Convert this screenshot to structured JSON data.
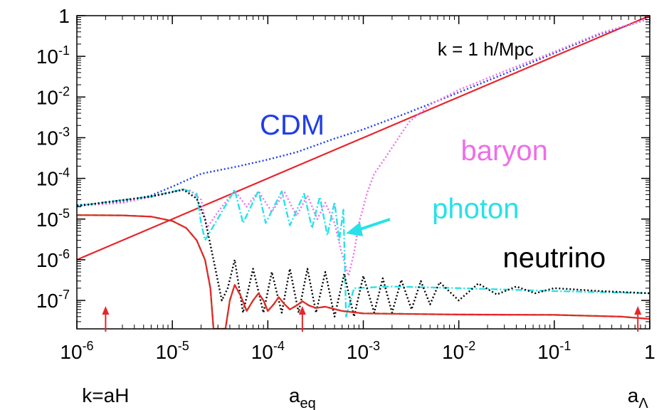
{
  "chart_data": {
    "type": "line",
    "title": "",
    "xlabel": "",
    "ylabel": "",
    "x_scale": "log",
    "y_scale": "log",
    "xlim": [
      1e-06,
      1
    ],
    "ylim": [
      2e-08,
      1
    ],
    "grid": false,
    "x_ticks": [
      {
        "value": 1e-06,
        "base": "10",
        "exp": "-6"
      },
      {
        "value": 1e-05,
        "base": "10",
        "exp": "-5"
      },
      {
        "value": 0.0001,
        "base": "10",
        "exp": "-4"
      },
      {
        "value": 0.001,
        "base": "10",
        "exp": "-3"
      },
      {
        "value": 0.01,
        "base": "10",
        "exp": "-2"
      },
      {
        "value": 0.1,
        "base": "10",
        "exp": "-1"
      },
      {
        "value": 1,
        "base": "1",
        "exp": ""
      }
    ],
    "y_ticks": [
      {
        "value": 1,
        "base": "1",
        "exp": ""
      },
      {
        "value": 0.1,
        "base": "10",
        "exp": "-1"
      },
      {
        "value": 0.01,
        "base": "10",
        "exp": "-2"
      },
      {
        "value": 0.001,
        "base": "10",
        "exp": "-3"
      },
      {
        "value": 0.0001,
        "base": "10",
        "exp": "-4"
      },
      {
        "value": 1e-05,
        "base": "10",
        "exp": "-5"
      },
      {
        "value": 1e-06,
        "base": "10",
        "exp": "-6"
      },
      {
        "value": 1e-07,
        "base": "10",
        "exp": "-7"
      }
    ],
    "annotations": {
      "k_label": "k = 1 h/Mpc",
      "cdm": {
        "text": "CDM",
        "color": "#1f3ee8",
        "x": 0.00018,
        "y": 0.0012
      },
      "baryon": {
        "text": "baryon",
        "color": "#ee6ee8",
        "x": 0.03,
        "y": 0.00028
      },
      "photon": {
        "text": "photon",
        "color": "#28e1e8",
        "x": 0.015,
        "y": 1.05e-05
      },
      "neutrino": {
        "text": "neutrino",
        "color": "#000000",
        "x": 0.1,
        "y": 6.5e-07
      }
    },
    "markers": [
      {
        "name": "k-aH",
        "x": 2e-06,
        "label": "k=aH",
        "label_sub": ""
      },
      {
        "name": "a-eq",
        "x": 0.00023,
        "label": "a",
        "label_sub": "eq"
      },
      {
        "name": "a-lambda",
        "x": 0.75,
        "label": "a",
        "label_sub": "Λ"
      }
    ],
    "series": [
      {
        "style": "solid",
        "color": "#e8252a",
        "points": [
          [
            1e-06,
            1e-06
          ],
          [
            1,
            1
          ]
        ]
      },
      {
        "style": "dotted",
        "color": "#1f3ee8",
        "points": [
          [
            1e-06,
            2.2e-05
          ],
          [
            3e-06,
            2.6e-05
          ],
          [
            6e-06,
            3.8e-05
          ],
          [
            1e-05,
            6.3e-05
          ],
          [
            2e-05,
            0.00013
          ],
          [
            5e-05,
            0.0002
          ],
          [
            0.0001,
            0.00029
          ],
          [
            0.0002,
            0.00044
          ],
          [
            0.0005,
            0.00095
          ],
          [
            0.001,
            0.0016
          ],
          [
            0.003,
            0.0042
          ],
          [
            0.01,
            0.013
          ],
          [
            0.03,
            0.037
          ],
          [
            0.1,
            0.12
          ],
          [
            0.3,
            0.35
          ],
          [
            1,
            0.85
          ]
        ]
      },
      {
        "style": "dotted",
        "color": "#ee6ee8",
        "points": [
          [
            1e-06,
            2.1e-05
          ],
          [
            3e-06,
            2.5e-05
          ],
          [
            6e-06,
            3.5e-05
          ],
          [
            1.2e-05,
            5e-05
          ],
          [
            1.5e-05,
            5.2e-05
          ],
          [
            2e-05,
            3e-05
          ],
          [
            2.3e-05,
            6e-06
          ],
          [
            3e-05,
            1.5e-05
          ],
          [
            4.5e-05,
            5e-05
          ],
          [
            6e-05,
            2e-05
          ],
          [
            8e-05,
            4.8e-05
          ],
          [
            0.00011,
            1.5e-05
          ],
          [
            0.00015,
            4.5e-05
          ],
          [
            0.0002,
            1.2e-05
          ],
          [
            0.00026,
            3.8e-05
          ],
          [
            0.00033,
            1e-05
          ],
          [
            0.0004,
            2.5e-05
          ],
          [
            0.0005,
            8e-06
          ],
          [
            0.00058,
            1.8e-06
          ],
          [
            0.0007,
            4e-07
          ],
          [
            0.0008,
            1.5e-06
          ],
          [
            0.0009,
            8e-06
          ],
          [
            0.0011,
            4.5e-05
          ],
          [
            0.0013,
            0.00013
          ],
          [
            0.0017,
            0.00032
          ],
          [
            0.0022,
            0.0008
          ],
          [
            0.003,
            0.0024
          ],
          [
            0.005,
            0.0065
          ],
          [
            0.01,
            0.015
          ],
          [
            0.03,
            0.043
          ],
          [
            0.1,
            0.13
          ],
          [
            0.3,
            0.37
          ],
          [
            1,
            0.85
          ]
        ]
      },
      {
        "style": "dashdot",
        "color": "#28e1e8",
        "points": [
          [
            1e-06,
            2.1e-05
          ],
          [
            6e-06,
            3.6e-05
          ],
          [
            1.3e-05,
            5.4e-05
          ],
          [
            1.8e-05,
            4.2e-05
          ],
          [
            2e-05,
            8e-06
          ],
          [
            2.2e-05,
            3e-06
          ],
          [
            4.5e-05,
            5.2e-05
          ],
          [
            5.5e-05,
            8e-06
          ],
          [
            8e-05,
            5e-05
          ],
          [
            9.5e-05,
            8e-06
          ],
          [
            0.00014,
            4.8e-05
          ],
          [
            0.00017,
            7e-06
          ],
          [
            0.00024,
            4.2e-05
          ],
          [
            0.00029,
            6e-06
          ],
          [
            0.00035,
            3.5e-05
          ],
          [
            0.00042,
            4e-06
          ],
          [
            0.0005,
            2.6e-05
          ],
          [
            0.00056,
            3e-06
          ],
          [
            0.00062,
            1.7e-05
          ],
          [
            0.00066,
            4e-08
          ],
          [
            0.0008,
            2e-07
          ],
          [
            0.002,
            2.2e-07
          ],
          [
            0.01,
            2e-07
          ],
          [
            0.1,
            1.7e-07
          ],
          [
            1,
            1.5e-07
          ]
        ]
      },
      {
        "style": "dotted",
        "color": "#000000",
        "points": [
          [
            1e-06,
            2.1e-05
          ],
          [
            6e-06,
            3.6e-05
          ],
          [
            1.3e-05,
            5.3e-05
          ],
          [
            1.8e-05,
            3.2e-05
          ],
          [
            2.2e-05,
            1e-05
          ],
          [
            2.7e-05,
            1e-06
          ],
          [
            3.3e-05,
            1e-07
          ],
          [
            3.8e-05,
            2e-07
          ],
          [
            4.5e-05,
            1e-06
          ],
          [
            5.5e-05,
            5e-08
          ],
          [
            7e-05,
            6e-07
          ],
          [
            9e-05,
            5e-08
          ],
          [
            0.00011,
            5e-07
          ],
          [
            0.00014,
            5e-08
          ],
          [
            0.00017,
            6e-07
          ],
          [
            0.00021,
            5e-08
          ],
          [
            0.00026,
            6e-07
          ],
          [
            0.00032,
            5e-08
          ],
          [
            0.0004,
            5e-07
          ],
          [
            0.0005,
            4e-08
          ],
          [
            0.00063,
            4.5e-07
          ],
          [
            0.0008,
            4e-08
          ],
          [
            0.001,
            4e-07
          ],
          [
            0.0013,
            5e-08
          ],
          [
            0.0016,
            3.5e-07
          ],
          [
            0.002,
            5e-08
          ],
          [
            0.0025,
            3.2e-07
          ],
          [
            0.0032,
            6e-08
          ],
          [
            0.004,
            3e-07
          ],
          [
            0.005,
            8e-08
          ],
          [
            0.0063,
            2.8e-07
          ],
          [
            0.01,
            1e-07
          ],
          [
            0.016,
            2.6e-07
          ],
          [
            0.025,
            1.4e-07
          ],
          [
            0.04,
            2.2e-07
          ],
          [
            0.063,
            1.5e-07
          ],
          [
            0.1,
            2e-07
          ],
          [
            0.3,
            1.7e-07
          ],
          [
            1,
            1.5e-07
          ]
        ]
      },
      {
        "style": "dashed",
        "color": "#29d12a",
        "points": [
          [
            1e-06,
            1.25e-05
          ],
          [
            3e-06,
            1.23e-05
          ],
          [
            6e-06,
            1.15e-05
          ],
          [
            1e-05,
            9e-06
          ],
          [
            1.4e-05,
            6e-06
          ],
          [
            1.8e-05,
            3e-06
          ],
          [
            2.2e-05,
            1e-06
          ],
          [
            2.5e-05,
            2e-07
          ],
          [
            2.7e-05,
            2e-08
          ],
          [
            3.6e-05,
            2e-08
          ],
          [
            4e-05,
            1e-07
          ],
          [
            4.5e-05,
            2.4e-07
          ],
          [
            5.2e-05,
            1.3e-07
          ],
          [
            6e-05,
            5.5e-08
          ],
          [
            7e-05,
            1e-07
          ],
          [
            8e-05,
            1.5e-07
          ],
          [
            9e-05,
            1e-07
          ],
          [
            0.0001,
            5.5e-08
          ],
          [
            0.000115,
            8e-08
          ],
          [
            0.00013,
            1.2e-07
          ],
          [
            0.00015,
            8e-08
          ],
          [
            0.00017,
            6e-08
          ],
          [
            0.0002,
            7.5e-08
          ],
          [
            0.00023,
            9.5e-08
          ],
          [
            0.00027,
            7.5e-08
          ],
          [
            0.00032,
            6.5e-08
          ],
          [
            0.0004,
            7e-08
          ],
          [
            0.0006,
            5.5e-08
          ],
          [
            0.001,
            4.8e-08
          ],
          [
            0.01,
            4.5e-08
          ],
          [
            0.1,
            4.4e-08
          ],
          [
            0.5,
            4e-08
          ],
          [
            1,
            3.5e-08
          ]
        ]
      },
      {
        "style": "solid",
        "color": "#e8252a",
        "points": [
          [
            1e-06,
            1.25e-05
          ],
          [
            3e-06,
            1.23e-05
          ],
          [
            6e-06,
            1.15e-05
          ],
          [
            1e-05,
            9e-06
          ],
          [
            1.4e-05,
            6e-06
          ],
          [
            1.8e-05,
            3e-06
          ],
          [
            2.2e-05,
            1e-06
          ],
          [
            2.5e-05,
            2e-07
          ],
          [
            2.7e-05,
            2e-08
          ],
          [
            3.6e-05,
            2e-08
          ],
          [
            4e-05,
            1e-07
          ],
          [
            4.5e-05,
            2.4e-07
          ],
          [
            5.2e-05,
            1.3e-07
          ],
          [
            6e-05,
            5.5e-08
          ],
          [
            7e-05,
            1e-07
          ],
          [
            8e-05,
            1.5e-07
          ],
          [
            9e-05,
            1e-07
          ],
          [
            0.0001,
            5.5e-08
          ],
          [
            0.000115,
            8e-08
          ],
          [
            0.00013,
            1.2e-07
          ],
          [
            0.00015,
            8e-08
          ],
          [
            0.00017,
            6e-08
          ],
          [
            0.0002,
            7.5e-08
          ],
          [
            0.00023,
            9.5e-08
          ],
          [
            0.00027,
            7.5e-08
          ],
          [
            0.00032,
            6.5e-08
          ],
          [
            0.0004,
            7e-08
          ],
          [
            0.0006,
            5.5e-08
          ],
          [
            0.001,
            4.8e-08
          ],
          [
            0.01,
            4.5e-08
          ],
          [
            0.1,
            4.4e-08
          ],
          [
            0.5,
            4e-08
          ],
          [
            1,
            3.5e-08
          ]
        ]
      }
    ]
  }
}
